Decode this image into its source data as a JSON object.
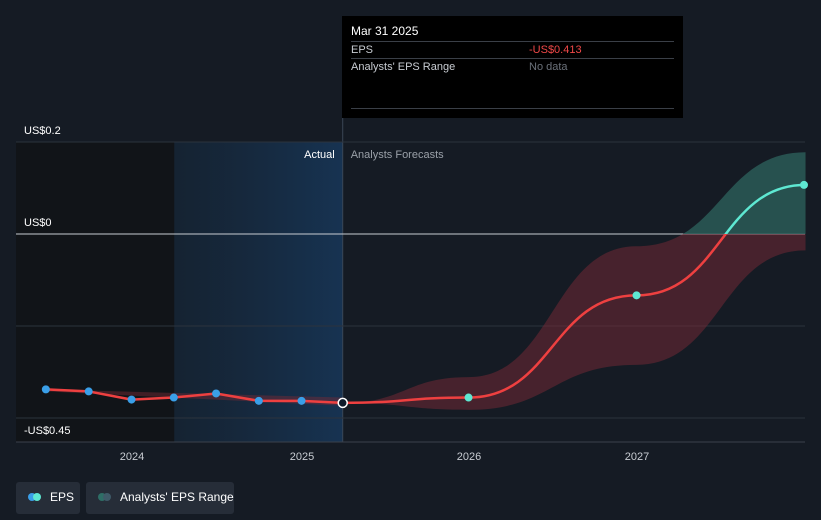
{
  "chart_data": {
    "type": "line",
    "y_ticks": [
      {
        "value": 0.2,
        "label": "US$0.2"
      },
      {
        "value": 0,
        "label": "US$0"
      },
      {
        "value": -0.45,
        "label": "-US$0.45"
      }
    ],
    "x_ticks": [
      "2024",
      "2025",
      "2026",
      "2027"
    ],
    "section_labels": {
      "actual": "Actual",
      "forecast": "Analysts Forecasts"
    },
    "series": [
      {
        "name": "EPS",
        "kind": "actual",
        "color": "#3a9fe8",
        "points": [
          {
            "x": "2023-06-30",
            "y": -0.38
          },
          {
            "x": "2023-09-30",
            "y": -0.385
          },
          {
            "x": "2023-12-31",
            "y": -0.405
          },
          {
            "x": "2024-03-31",
            "y": -0.4
          },
          {
            "x": "2024-06-30",
            "y": -0.39
          },
          {
            "x": "2024-09-30",
            "y": -0.408
          },
          {
            "x": "2024-12-31",
            "y": -0.408
          },
          {
            "x": "2025-03-31",
            "y": -0.413
          }
        ]
      },
      {
        "name": "EPS",
        "kind": "forecast",
        "color": "#ee4040",
        "points": [
          {
            "x": "2025-03-31",
            "y": -0.413
          },
          {
            "x": "2025-12-31",
            "y": -0.4
          },
          {
            "x": "2026-12-31",
            "y": -0.15
          },
          {
            "x": "2027-12-31",
            "y": 0.12
          }
        ]
      },
      {
        "name": "Analysts' EPS Range",
        "kind": "range",
        "points": [
          {
            "x": "2025-03-31",
            "low": -0.413,
            "high": -0.413
          },
          {
            "x": "2025-12-31",
            "low": -0.43,
            "high": -0.35
          },
          {
            "x": "2026-12-31",
            "low": -0.32,
            "high": -0.03
          },
          {
            "x": "2027-12-31",
            "low": -0.04,
            "high": 0.2
          }
        ]
      }
    ],
    "tooltip": {
      "date": "Mar 31 2025",
      "rows": [
        {
          "label": "EPS",
          "value": "-US$0.413"
        },
        {
          "label": "Analysts' EPS Range",
          "value": "No data"
        }
      ]
    },
    "legend": [
      {
        "label": "EPS",
        "color": "#3a9fe8"
      },
      {
        "label": "Analysts' EPS Range",
        "color": "#2e6e66"
      }
    ],
    "colors": {
      "background": "#151b24",
      "actual_shade": "#15293d",
      "past_shade": "#111418",
      "negative_range": "#7a2a35",
      "positive_range": "#2a5a57",
      "positive_line": "#5ee8d2"
    }
  }
}
